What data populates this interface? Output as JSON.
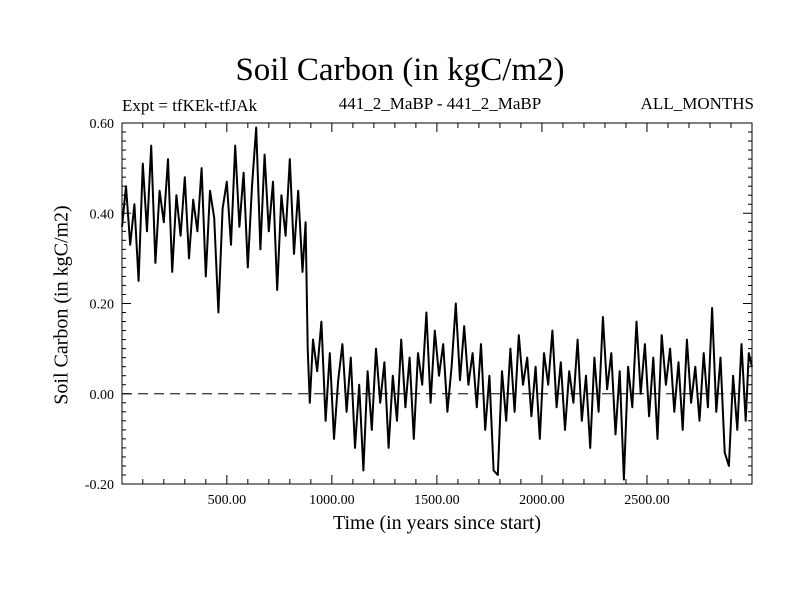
{
  "chart_data": {
    "type": "line",
    "title": "Soil Carbon (in kgC/m2)",
    "subtitle_left": "Expt = tfKEk-tfJAk",
    "subtitle_center": "441_2_MaBP - 441_2_MaBP",
    "subtitle_right": "ALL_MONTHS",
    "xlabel": "Time (in years since start)",
    "ylabel": "Soil Carbon (in kgC/m2)",
    "xlim": [
      1,
      3000
    ],
    "ylim": [
      -0.2,
      0.6
    ],
    "x_ticks": [
      500,
      1000,
      1500,
      2000,
      2500
    ],
    "x_tick_labels": [
      "500.00",
      "1000.00",
      "1500.00",
      "2000.00",
      "2500.00"
    ],
    "y_ticks": [
      -0.2,
      0.0,
      0.2,
      0.4,
      0.6
    ],
    "y_tick_labels": [
      "-0.20",
      "0.00",
      "0.20",
      "0.40",
      "0.60"
    ],
    "reference_line": 0.0,
    "grid": false,
    "series_points": [
      [
        1,
        0.37
      ],
      [
        20,
        0.46
      ],
      [
        40,
        0.33
      ],
      [
        60,
        0.42
      ],
      [
        80,
        0.25
      ],
      [
        100,
        0.51
      ],
      [
        120,
        0.36
      ],
      [
        140,
        0.55
      ],
      [
        160,
        0.29
      ],
      [
        180,
        0.45
      ],
      [
        200,
        0.38
      ],
      [
        220,
        0.52
      ],
      [
        240,
        0.27
      ],
      [
        260,
        0.44
      ],
      [
        280,
        0.35
      ],
      [
        300,
        0.48
      ],
      [
        320,
        0.3
      ],
      [
        340,
        0.43
      ],
      [
        360,
        0.36
      ],
      [
        380,
        0.5
      ],
      [
        400,
        0.26
      ],
      [
        420,
        0.45
      ],
      [
        440,
        0.39
      ],
      [
        460,
        0.18
      ],
      [
        480,
        0.41
      ],
      [
        500,
        0.47
      ],
      [
        520,
        0.33
      ],
      [
        540,
        0.55
      ],
      [
        560,
        0.37
      ],
      [
        580,
        0.49
      ],
      [
        600,
        0.28
      ],
      [
        620,
        0.46
      ],
      [
        640,
        0.59
      ],
      [
        660,
        0.32
      ],
      [
        680,
        0.53
      ],
      [
        700,
        0.36
      ],
      [
        720,
        0.47
      ],
      [
        740,
        0.23
      ],
      [
        760,
        0.44
      ],
      [
        780,
        0.35
      ],
      [
        800,
        0.52
      ],
      [
        820,
        0.31
      ],
      [
        840,
        0.45
      ],
      [
        860,
        0.27
      ],
      [
        875,
        0.38
      ],
      [
        885,
        0.1
      ],
      [
        895,
        -0.02
      ],
      [
        910,
        0.12
      ],
      [
        930,
        0.05
      ],
      [
        950,
        0.16
      ],
      [
        970,
        -0.06
      ],
      [
        990,
        0.09
      ],
      [
        1010,
        -0.1
      ],
      [
        1030,
        0.03
      ],
      [
        1050,
        0.11
      ],
      [
        1070,
        -0.04
      ],
      [
        1090,
        0.08
      ],
      [
        1110,
        -0.12
      ],
      [
        1130,
        0.02
      ],
      [
        1150,
        -0.17
      ],
      [
        1170,
        0.05
      ],
      [
        1190,
        -0.08
      ],
      [
        1210,
        0.1
      ],
      [
        1230,
        -0.02
      ],
      [
        1250,
        0.07
      ],
      [
        1270,
        -0.12
      ],
      [
        1290,
        0.04
      ],
      [
        1310,
        -0.06
      ],
      [
        1330,
        0.12
      ],
      [
        1350,
        -0.03
      ],
      [
        1370,
        0.08
      ],
      [
        1390,
        -0.1
      ],
      [
        1410,
        0.09
      ],
      [
        1430,
        0.02
      ],
      [
        1450,
        0.18
      ],
      [
        1470,
        -0.02
      ],
      [
        1490,
        0.14
      ],
      [
        1510,
        0.04
      ],
      [
        1530,
        0.11
      ],
      [
        1550,
        -0.04
      ],
      [
        1570,
        0.06
      ],
      [
        1590,
        0.2
      ],
      [
        1610,
        0.03
      ],
      [
        1630,
        0.15
      ],
      [
        1650,
        0.02
      ],
      [
        1670,
        0.09
      ],
      [
        1690,
        -0.03
      ],
      [
        1710,
        0.11
      ],
      [
        1730,
        -0.08
      ],
      [
        1750,
        0.04
      ],
      [
        1770,
        -0.17
      ],
      [
        1790,
        -0.18
      ],
      [
        1810,
        0.05
      ],
      [
        1830,
        -0.06
      ],
      [
        1850,
        0.1
      ],
      [
        1870,
        -0.04
      ],
      [
        1890,
        0.13
      ],
      [
        1910,
        0.02
      ],
      [
        1930,
        0.08
      ],
      [
        1950,
        -0.05
      ],
      [
        1970,
        0.06
      ],
      [
        1990,
        -0.1
      ],
      [
        2010,
        0.09
      ],
      [
        2030,
        0.02
      ],
      [
        2050,
        0.14
      ],
      [
        2070,
        -0.03
      ],
      [
        2090,
        0.07
      ],
      [
        2110,
        -0.08
      ],
      [
        2130,
        0.05
      ],
      [
        2150,
        -0.02
      ],
      [
        2170,
        0.12
      ],
      [
        2190,
        -0.06
      ],
      [
        2210,
        0.04
      ],
      [
        2230,
        -0.12
      ],
      [
        2250,
        0.08
      ],
      [
        2270,
        -0.04
      ],
      [
        2290,
        0.17
      ],
      [
        2310,
        0.01
      ],
      [
        2330,
        0.09
      ],
      [
        2350,
        -0.09
      ],
      [
        2370,
        0.05
      ],
      [
        2390,
        -0.19
      ],
      [
        2410,
        0.06
      ],
      [
        2430,
        -0.03
      ],
      [
        2450,
        0.16
      ],
      [
        2470,
        0.0
      ],
      [
        2490,
        0.11
      ],
      [
        2510,
        -0.05
      ],
      [
        2530,
        0.08
      ],
      [
        2550,
        -0.1
      ],
      [
        2570,
        0.13
      ],
      [
        2590,
        0.02
      ],
      [
        2610,
        0.1
      ],
      [
        2630,
        -0.04
      ],
      [
        2650,
        0.07
      ],
      [
        2670,
        -0.08
      ],
      [
        2690,
        0.12
      ],
      [
        2710,
        -0.02
      ],
      [
        2730,
        0.06
      ],
      [
        2750,
        -0.06
      ],
      [
        2770,
        0.09
      ],
      [
        2790,
        -0.03
      ],
      [
        2810,
        0.19
      ],
      [
        2830,
        -0.04
      ],
      [
        2850,
        0.08
      ],
      [
        2870,
        -0.13
      ],
      [
        2890,
        -0.16
      ],
      [
        2910,
        0.04
      ],
      [
        2930,
        -0.08
      ],
      [
        2950,
        0.11
      ],
      [
        2970,
        -0.06
      ],
      [
        2985,
        0.09
      ],
      [
        3000,
        0.06
      ]
    ]
  }
}
